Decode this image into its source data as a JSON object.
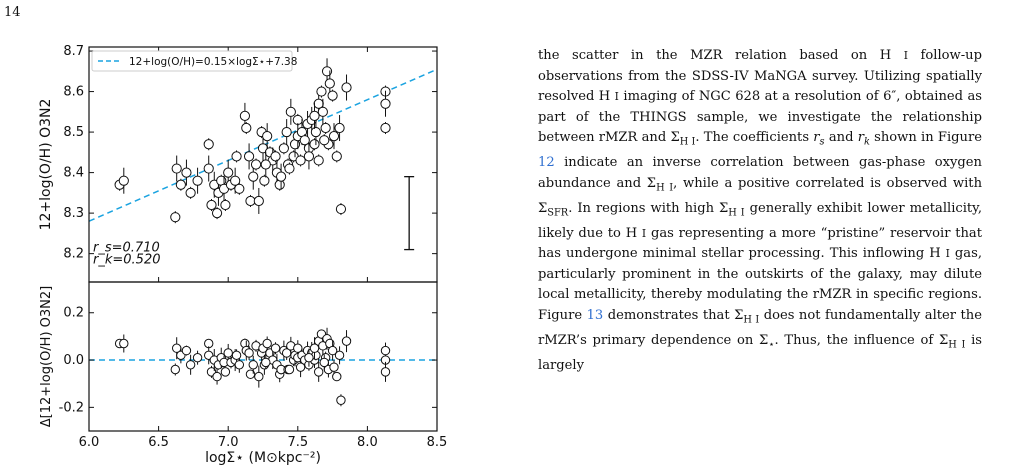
{
  "page": {
    "number": "14"
  },
  "chart_data": [
    {
      "type": "scatter",
      "panel": "top",
      "ylabel": "12+log(O/H) O3N2",
      "xlim": [
        6.0,
        8.5
      ],
      "ylim": [
        8.13,
        8.71
      ],
      "xticks": [
        "6.0",
        "6.5",
        "7.0",
        "7.5",
        "8.0",
        "8.5"
      ],
      "yticks": [
        "8.2",
        "8.3",
        "8.4",
        "8.5",
        "8.6",
        "8.7"
      ],
      "legend": {
        "label": "12+log(O/H)=0.15×logΣ⋆+7.38",
        "placement": "top-left"
      },
      "fit_line": {
        "slope": 0.15,
        "intercept": 7.38,
        "color": "#1aa3e0"
      },
      "annotations": {
        "rs": "r_s=0.710",
        "rk": "r_k=0.520"
      },
      "typical_error_bar": {
        "x": 8.3,
        "y_low": 8.21,
        "y_high": 8.39
      },
      "points": [
        [
          6.22,
          8.37
        ],
        [
          6.25,
          8.38
        ],
        [
          6.62,
          8.29
        ],
        [
          6.63,
          8.41
        ],
        [
          6.66,
          8.37
        ],
        [
          6.7,
          8.4
        ],
        [
          6.73,
          8.35
        ],
        [
          6.78,
          8.38
        ],
        [
          6.86,
          8.47
        ],
        [
          6.86,
          8.41
        ],
        [
          6.88,
          8.32
        ],
        [
          6.9,
          8.37
        ],
        [
          6.92,
          8.3
        ],
        [
          6.93,
          8.35
        ],
        [
          6.95,
          8.38
        ],
        [
          6.97,
          8.36
        ],
        [
          6.98,
          8.32
        ],
        [
          7.0,
          8.4
        ],
        [
          7.02,
          8.37
        ],
        [
          7.05,
          8.38
        ],
        [
          7.08,
          8.36
        ],
        [
          7.12,
          8.54
        ],
        [
          7.13,
          8.51
        ],
        [
          7.15,
          8.44
        ],
        [
          7.16,
          8.33
        ],
        [
          7.18,
          8.39
        ],
        [
          7.2,
          8.42
        ],
        [
          7.22,
          8.33
        ],
        [
          7.24,
          8.5
        ],
        [
          7.25,
          8.46
        ],
        [
          7.26,
          8.38
        ],
        [
          7.28,
          8.49
        ],
        [
          7.3,
          8.45
        ],
        [
          7.32,
          8.43
        ],
        [
          7.34,
          8.44
        ],
        [
          7.35,
          8.4
        ],
        [
          7.37,
          8.37
        ],
        [
          7.38,
          8.39
        ],
        [
          7.4,
          8.46
        ],
        [
          7.42,
          8.5
        ],
        [
          7.43,
          8.42
        ],
        [
          7.45,
          8.55
        ],
        [
          7.47,
          8.44
        ],
        [
          7.48,
          8.47
        ],
        [
          7.5,
          8.53
        ],
        [
          7.5,
          8.49
        ],
        [
          7.52,
          8.43
        ],
        [
          7.53,
          8.5
        ],
        [
          7.55,
          8.48
        ],
        [
          7.57,
          8.52
        ],
        [
          7.58,
          8.46
        ],
        [
          7.6,
          8.53
        ],
        [
          7.62,
          8.47
        ],
        [
          7.63,
          8.5
        ],
        [
          7.65,
          8.43
        ],
        [
          7.65,
          8.57
        ],
        [
          7.67,
          8.6
        ],
        [
          7.68,
          8.55
        ],
        [
          7.7,
          8.51
        ],
        [
          7.71,
          8.65
        ],
        [
          7.72,
          8.47
        ],
        [
          7.73,
          8.62
        ],
        [
          7.75,
          8.59
        ],
        [
          7.76,
          8.49
        ],
        [
          7.78,
          8.44
        ],
        [
          7.8,
          8.51
        ],
        [
          7.81,
          8.31
        ],
        [
          7.85,
          8.61
        ],
        [
          8.13,
          8.6
        ],
        [
          8.13,
          8.57
        ],
        [
          8.13,
          8.51
        ],
        [
          7.27,
          8.42
        ],
        [
          7.44,
          8.41
        ],
        [
          7.58,
          8.44
        ],
        [
          7.06,
          8.44
        ],
        [
          7.62,
          8.54
        ],
        [
          7.69,
          8.48
        ]
      ]
    },
    {
      "type": "scatter",
      "panel": "bottom",
      "xlabel": "logΣ⋆ (M⊙kpc⁻²)",
      "ylabel": "Δ[12+log(O/H) O3N2]",
      "xlim": [
        6.0,
        8.5
      ],
      "ylim": [
        -0.3,
        0.33
      ],
      "xticks": [
        "6.0",
        "6.5",
        "7.0",
        "7.5",
        "8.0",
        "8.5"
      ],
      "yticks": [
        "-0.2",
        "0.0",
        "0.2"
      ],
      "zero_line": {
        "y": 0.0,
        "color": "#1aa3e0"
      },
      "points": [
        [
          6.22,
          0.07
        ],
        [
          6.25,
          0.07
        ],
        [
          6.62,
          -0.04
        ],
        [
          6.63,
          0.05
        ],
        [
          6.66,
          0.02
        ],
        [
          6.7,
          0.04
        ],
        [
          6.73,
          -0.02
        ],
        [
          6.78,
          0.01
        ],
        [
          6.86,
          0.07
        ],
        [
          6.86,
          0.02
        ],
        [
          6.88,
          -0.05
        ],
        [
          6.9,
          0.0
        ],
        [
          6.92,
          -0.07
        ],
        [
          6.93,
          -0.02
        ],
        [
          6.95,
          0.01
        ],
        [
          6.97,
          -0.01
        ],
        [
          6.98,
          -0.05
        ],
        [
          7.0,
          0.03
        ],
        [
          7.02,
          -0.01
        ],
        [
          7.05,
          0.0
        ],
        [
          7.08,
          -0.02
        ],
        [
          7.12,
          0.07
        ],
        [
          7.13,
          0.04
        ],
        [
          7.15,
          0.03
        ],
        [
          7.16,
          -0.06
        ],
        [
          7.18,
          -0.02
        ],
        [
          7.2,
          0.06
        ],
        [
          7.22,
          -0.07
        ],
        [
          7.24,
          0.03
        ],
        [
          7.25,
          0.05
        ],
        [
          7.26,
          -0.02
        ],
        [
          7.28,
          0.07
        ],
        [
          7.3,
          0.03
        ],
        [
          7.32,
          0.0
        ],
        [
          7.34,
          0.05
        ],
        [
          7.35,
          -0.02
        ],
        [
          7.37,
          -0.06
        ],
        [
          7.38,
          -0.04
        ],
        [
          7.4,
          0.04
        ],
        [
          7.42,
          0.03
        ],
        [
          7.43,
          -0.04
        ],
        [
          7.45,
          0.06
        ],
        [
          7.47,
          0.0
        ],
        [
          7.48,
          0.02
        ],
        [
          7.5,
          0.05
        ],
        [
          7.5,
          0.01
        ],
        [
          7.52,
          -0.03
        ],
        [
          7.53,
          0.02
        ],
        [
          7.55,
          0.0
        ],
        [
          7.57,
          0.04
        ],
        [
          7.58,
          -0.02
        ],
        [
          7.6,
          0.03
        ],
        [
          7.62,
          0.0
        ],
        [
          7.63,
          0.02
        ],
        [
          7.65,
          -0.05
        ],
        [
          7.65,
          0.08
        ],
        [
          7.67,
          0.11
        ],
        [
          7.68,
          0.06
        ],
        [
          7.7,
          0.01
        ],
        [
          7.71,
          0.09
        ],
        [
          7.72,
          -0.04
        ],
        [
          7.73,
          0.07
        ],
        [
          7.75,
          0.04
        ],
        [
          7.76,
          -0.03
        ],
        [
          7.78,
          -0.07
        ],
        [
          7.8,
          0.02
        ],
        [
          7.81,
          -0.17
        ],
        [
          7.85,
          0.08
        ],
        [
          8.13,
          0.04
        ],
        [
          8.13,
          0.0
        ],
        [
          8.13,
          -0.05
        ],
        [
          7.27,
          -0.01
        ],
        [
          7.44,
          -0.04
        ],
        [
          7.58,
          0.01
        ],
        [
          7.06,
          0.02
        ],
        [
          7.62,
          0.05
        ],
        [
          7.69,
          -0.01
        ]
      ]
    }
  ],
  "text": {
    "paragraph": [
      {
        "t": "the scatter in the MZR relation based on H "
      },
      {
        "t": "I",
        "small": true
      },
      {
        "t": " follow-up observations from the SDSS-IV MaNGA survey. Utilizing spatially resolved H "
      },
      {
        "t": "I",
        "small": true
      },
      {
        "t": " imaging of NGC 628 at a resolution of 6″, obtained as part of the THINGS sample, we investigate the relationship between rMZR and Σ"
      },
      {
        "t": "H I",
        "sub": true
      },
      {
        "t": ". The coefficients "
      },
      {
        "t": "r",
        "italic": true
      },
      {
        "t": "s",
        "sub": true,
        "italic": true
      },
      {
        "t": " and "
      },
      {
        "t": "r",
        "italic": true
      },
      {
        "t": "k",
        "sub": true,
        "italic": true
      },
      {
        "t": " shown in Figure "
      },
      {
        "t": "12",
        "link": true
      },
      {
        "t": " indicate an inverse correlation between gas-phase oxygen abundance and Σ"
      },
      {
        "t": "H I",
        "sub": true
      },
      {
        "t": ", while a positive correlated is observed with Σ"
      },
      {
        "t": "SFR",
        "sub": true
      },
      {
        "t": ". In regions with high Σ"
      },
      {
        "t": "H I",
        "sub": true
      },
      {
        "t": " generally exhibit lower metallicity, likely due to H "
      },
      {
        "t": "I",
        "small": true
      },
      {
        "t": " gas representing a more “pristine” reservoir that has undergone minimal stellar processing. This inflowing H "
      },
      {
        "t": "I",
        "small": true
      },
      {
        "t": " gas, particularly prominent in the outskirts of the galaxy, may dilute local metallicity, thereby modulating the rMZR in specific regions. Figure "
      },
      {
        "t": "13",
        "link": true
      },
      {
        "t": " demonstrates that Σ"
      },
      {
        "t": "H I",
        "sub": true
      },
      {
        "t": " does not fundamentally alter the rMZR’s primary dependence on Σ"
      },
      {
        "t": "⋆",
        "sub": true
      },
      {
        "t": ". Thus, the influence of Σ"
      },
      {
        "t": "H I",
        "sub": true
      },
      {
        "t": " is largely"
      }
    ]
  },
  "colors": {
    "fit": "#1aa3e0",
    "link": "#2f6fd0"
  }
}
